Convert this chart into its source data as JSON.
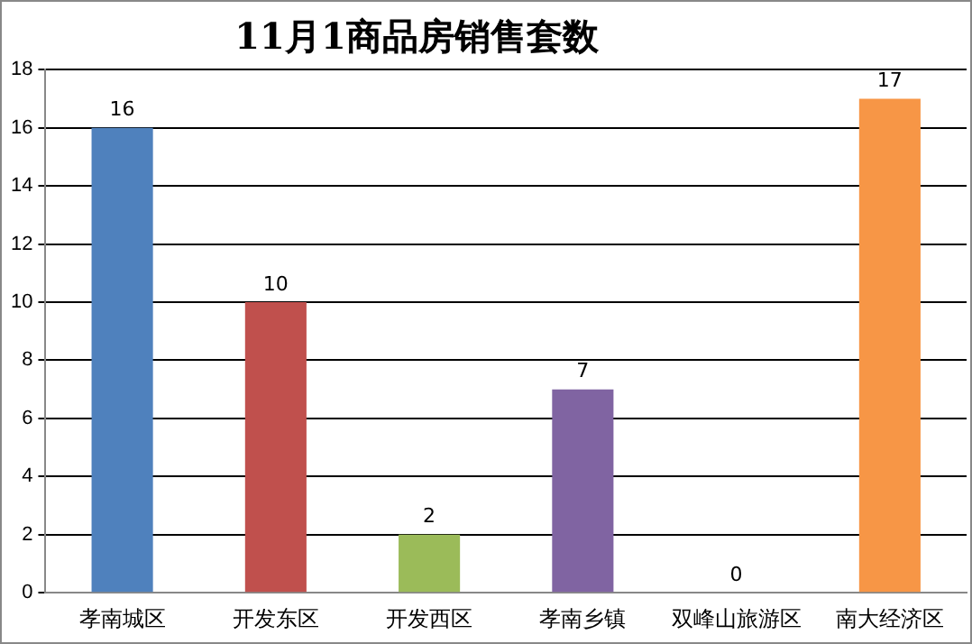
{
  "chart_data": {
    "type": "bar",
    "title": "11月1商品房销售套数",
    "categories": [
      "孝南城区",
      "开发东区",
      "开发西区",
      "孝南乡镇",
      "双峰山旅游区",
      "南大经济区"
    ],
    "values": [
      16,
      10,
      2,
      7,
      0,
      17
    ],
    "colors": [
      "#4f81bd",
      "#c0504d",
      "#9bbb59",
      "#8064a2",
      "#4bacc6",
      "#f79646"
    ],
    "ylim": [
      0,
      18
    ],
    "yticks": [
      0,
      2,
      4,
      6,
      8,
      10,
      12,
      14,
      16,
      18
    ],
    "grid": "y",
    "data_labels": true
  }
}
